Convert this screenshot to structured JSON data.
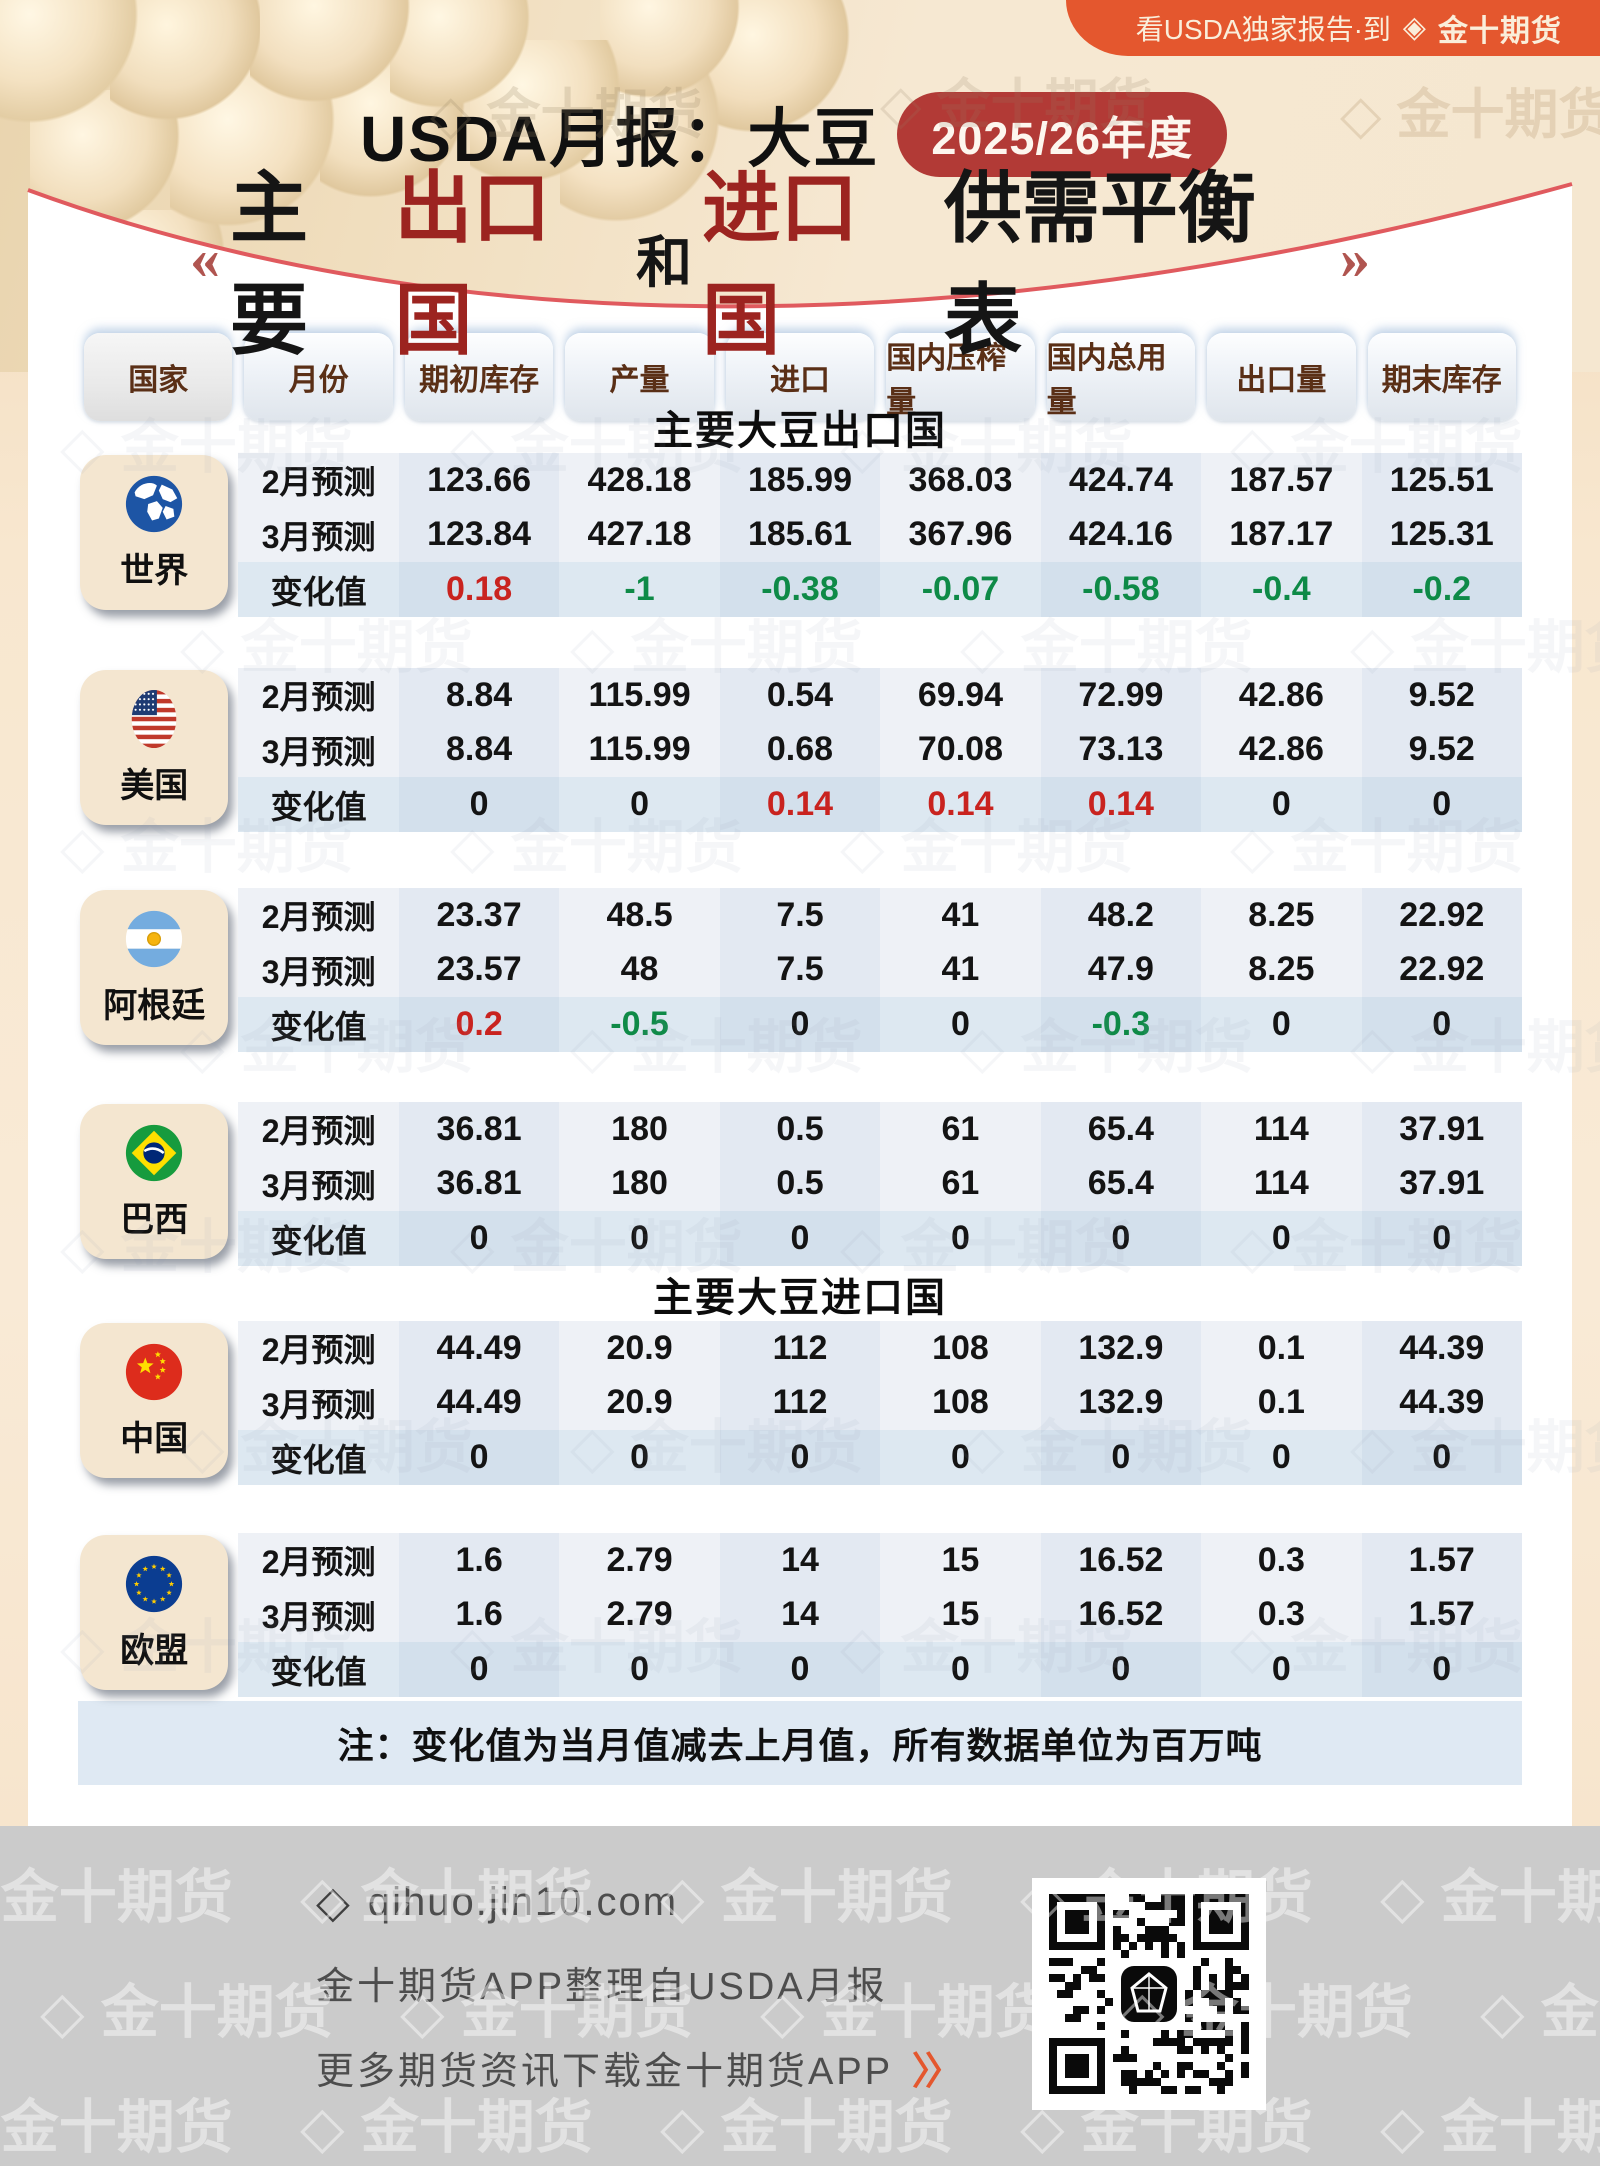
{
  "banner": {
    "text": "看USDA独家报告·到",
    "brand": "金十期货",
    "logo_icon": "jin10-diamond-icon"
  },
  "header": {
    "title": "USDA月报：大豆",
    "badge": "2025/26年度",
    "subtitle": {
      "left_mark": "«",
      "black1": "主要",
      "red1": "出口国",
      "and": "和",
      "red2": "进口国",
      "black2": "供需平衡表",
      "right_mark": "»"
    }
  },
  "table": {
    "columns": [
      "国家",
      "月份",
      "期初库存",
      "产量",
      "进口",
      "国内压榨量",
      "国内总用量",
      "出口量",
      "期末库存"
    ],
    "row_labels": [
      "2月预测",
      "3月预测",
      "变化值"
    ],
    "sections": [
      {
        "title": "主要大豆出口国",
        "countries": [
          {
            "name": "世界",
            "flag": "world",
            "rows": {
              "feb": [
                "123.66",
                "428.18",
                "185.99",
                "368.03",
                "424.74",
                "187.57",
                "125.51"
              ],
              "mar": [
                "123.84",
                "427.18",
                "185.61",
                "367.96",
                "424.16",
                "187.17",
                "125.31"
              ],
              "change": [
                "0.18",
                "-1",
                "-0.38",
                "-0.07",
                "-0.58",
                "-0.4",
                "-0.2"
              ]
            }
          },
          {
            "name": "美国",
            "flag": "us",
            "rows": {
              "feb": [
                "8.84",
                "115.99",
                "0.54",
                "69.94",
                "72.99",
                "42.86",
                "9.52"
              ],
              "mar": [
                "8.84",
                "115.99",
                "0.68",
                "70.08",
                "73.13",
                "42.86",
                "9.52"
              ],
              "change": [
                "0",
                "0",
                "0.14",
                "0.14",
                "0.14",
                "0",
                "0"
              ]
            }
          },
          {
            "name": "阿根廷",
            "flag": "argentina",
            "rows": {
              "feb": [
                "23.37",
                "48.5",
                "7.5",
                "41",
                "48.2",
                "8.25",
                "22.92"
              ],
              "mar": [
                "23.57",
                "48",
                "7.5",
                "41",
                "47.9",
                "8.25",
                "22.92"
              ],
              "change": [
                "0.2",
                "-0.5",
                "0",
                "0",
                "-0.3",
                "0",
                "0"
              ]
            }
          },
          {
            "name": "巴西",
            "flag": "brazil",
            "rows": {
              "feb": [
                "36.81",
                "180",
                "0.5",
                "61",
                "65.4",
                "114",
                "37.91"
              ],
              "mar": [
                "36.81",
                "180",
                "0.5",
                "61",
                "65.4",
                "114",
                "37.91"
              ],
              "change": [
                "0",
                "0",
                "0",
                "0",
                "0",
                "0",
                "0"
              ]
            }
          }
        ]
      },
      {
        "title": "主要大豆进口国",
        "countries": [
          {
            "name": "中国",
            "flag": "china",
            "rows": {
              "feb": [
                "44.49",
                "20.9",
                "112",
                "108",
                "132.9",
                "0.1",
                "44.39"
              ],
              "mar": [
                "44.49",
                "20.9",
                "112",
                "108",
                "132.9",
                "0.1",
                "44.39"
              ],
              "change": [
                "0",
                "0",
                "0",
                "0",
                "0",
                "0",
                "0"
              ]
            }
          },
          {
            "name": "欧盟",
            "flag": "eu",
            "rows": {
              "feb": [
                "1.6",
                "2.79",
                "14",
                "15",
                "16.52",
                "0.3",
                "1.57"
              ],
              "mar": [
                "1.6",
                "2.79",
                "14",
                "15",
                "16.52",
                "0.3",
                "1.57"
              ],
              "change": [
                "0",
                "0",
                "0",
                "0",
                "0",
                "0",
                "0"
              ]
            }
          }
        ]
      }
    ]
  },
  "note": "注：变化值为当月值减去上月值，所有数据单位为百万吨",
  "footer": {
    "site": "qihuo.jin10.com",
    "line1": "金十期货APP整理自USDA月报",
    "line2": "更多期货资讯下载金十期货APP",
    "arrow": "〉〉",
    "qr_icon": "jin10-qr-code"
  },
  "watermark": {
    "text": "金十期货",
    "glyph": "◇"
  },
  "colors": {
    "positive_change": "#c9231f",
    "negative_change": "#0e8a47",
    "badge_red": "#b23a36",
    "subtitle_red": "#9c2420",
    "banner_orange": "#e4572e",
    "curve_line": "#e05a5e"
  },
  "chart_data": {
    "type": "table",
    "title": "USDA月报：大豆 2025/26年度 主要出口国和进口国供需平衡表",
    "unit": "百万吨",
    "columns": [
      "期初库存",
      "产量",
      "进口",
      "国内压榨量",
      "国内总用量",
      "出口量",
      "期末库存"
    ],
    "row_labels": [
      "2月预测",
      "3月预测",
      "变化值"
    ],
    "groups": [
      {
        "section": "主要大豆出口国",
        "name": "世界",
        "feb": [
          123.66,
          428.18,
          185.99,
          368.03,
          424.74,
          187.57,
          125.51
        ],
        "mar": [
          123.84,
          427.18,
          185.61,
          367.96,
          424.16,
          187.17,
          125.31
        ],
        "change": [
          0.18,
          -1,
          -0.38,
          -0.07,
          -0.58,
          -0.4,
          -0.2
        ]
      },
      {
        "section": "主要大豆出口国",
        "name": "美国",
        "feb": [
          8.84,
          115.99,
          0.54,
          69.94,
          72.99,
          42.86,
          9.52
        ],
        "mar": [
          8.84,
          115.99,
          0.68,
          70.08,
          73.13,
          42.86,
          9.52
        ],
        "change": [
          0,
          0,
          0.14,
          0.14,
          0.14,
          0,
          0
        ]
      },
      {
        "section": "主要大豆出口国",
        "name": "阿根廷",
        "feb": [
          23.37,
          48.5,
          7.5,
          41,
          48.2,
          8.25,
          22.92
        ],
        "mar": [
          23.57,
          48,
          7.5,
          41,
          47.9,
          8.25,
          22.92
        ],
        "change": [
          0.2,
          -0.5,
          0,
          0,
          -0.3,
          0,
          0
        ]
      },
      {
        "section": "主要大豆出口国",
        "name": "巴西",
        "feb": [
          36.81,
          180,
          0.5,
          61,
          65.4,
          114,
          37.91
        ],
        "mar": [
          36.81,
          180,
          0.5,
          61,
          65.4,
          114,
          37.91
        ],
        "change": [
          0,
          0,
          0,
          0,
          0,
          0,
          0
        ]
      },
      {
        "section": "主要大豆进口国",
        "name": "中国",
        "feb": [
          44.49,
          20.9,
          112,
          108,
          132.9,
          0.1,
          44.39
        ],
        "mar": [
          44.49,
          20.9,
          112,
          108,
          132.9,
          0.1,
          44.39
        ],
        "change": [
          0,
          0,
          0,
          0,
          0,
          0,
          0
        ]
      },
      {
        "section": "主要大豆进口国",
        "name": "欧盟",
        "feb": [
          1.6,
          2.79,
          14,
          15,
          16.52,
          0.3,
          1.57
        ],
        "mar": [
          1.6,
          2.79,
          14,
          15,
          16.52,
          0.3,
          1.57
        ],
        "change": [
          0,
          0,
          0,
          0,
          0,
          0,
          0
        ]
      }
    ]
  }
}
